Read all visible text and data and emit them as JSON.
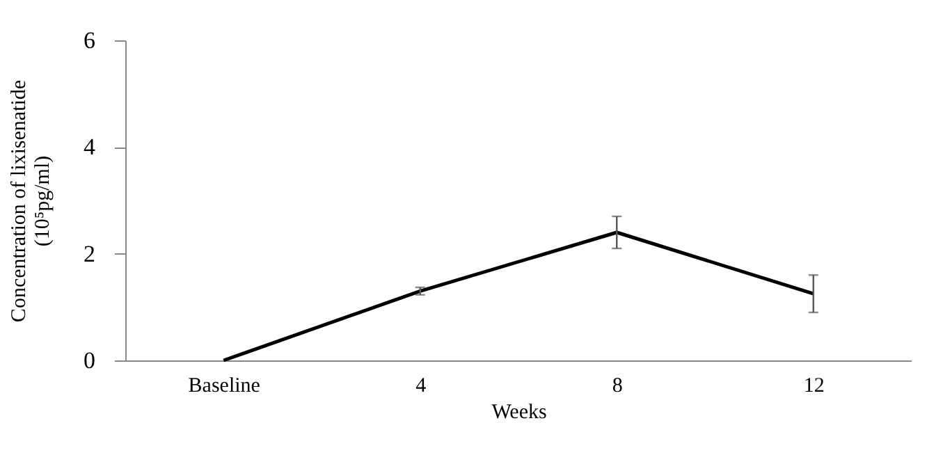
{
  "chart_data": {
    "type": "line",
    "xlabel": "Weeks",
    "ylabel": "Concentration of lixisenatide\n(10⁵pg/ml)",
    "categories": [
      "Baseline",
      "4",
      "8",
      "12"
    ],
    "series": [
      {
        "color": "#000000",
        "values": [
          0,
          1.3,
          2.4,
          1.25
        ],
        "errors": [
          null,
          0.07,
          0.3,
          0.35
        ]
      }
    ],
    "ylim": [
      0,
      6
    ],
    "yticks": [
      0,
      2,
      4,
      6
    ],
    "grid": false,
    "marker": "none",
    "line_style": "solid"
  }
}
